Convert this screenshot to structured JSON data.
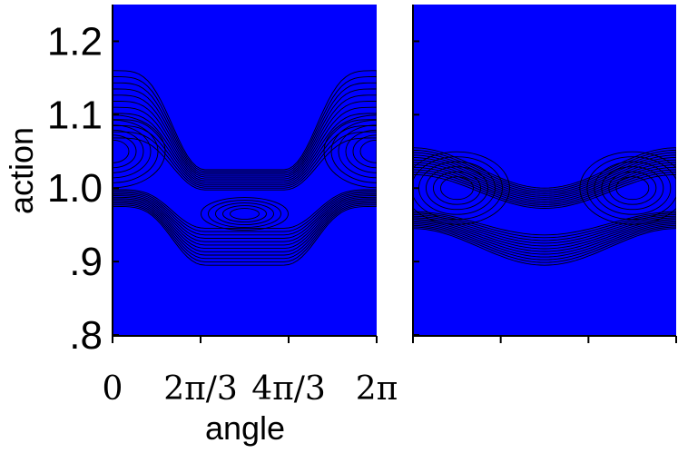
{
  "chart_data": [
    {
      "type": "contour",
      "xlabel": "angle",
      "ylabel": "action",
      "xlim": [
        0,
        6.2832
      ],
      "ylim": [
        0.8,
        1.25
      ],
      "x_ticks": [
        0,
        2.0944,
        4.1888,
        6.2832
      ],
      "x_tick_labels": [
        "0",
        "2π/3",
        "4π/3",
        "2π"
      ],
      "y_ticks": [
        0.8,
        0.9,
        1.0,
        1.1,
        1.2
      ],
      "y_tick_labels": [
        ".8",
        ".9",
        "1.0",
        "1.1",
        "1.2"
      ],
      "colormap": [
        "#0000ff",
        "#0a5cff",
        "#1ea0ff",
        "#35d2ff",
        "#3ff0d8",
        "#2fe890",
        "#40e830",
        "#9aef10",
        "#e8f000",
        "#ffd800",
        "#ff9a00",
        "#ff5a00",
        "#e81e00",
        "#ffffff"
      ],
      "max_region": {
        "center": [
          3.14159,
          0.965
        ],
        "description": "peak intensity at angle π, action ≈ 0.965"
      },
      "islands": [
        {
          "center_x": 0.0,
          "center_y": 1.05
        },
        {
          "center_x": 6.2832,
          "center_y": 1.05
        }
      ]
    },
    {
      "type": "contour",
      "xlim": [
        0,
        6.2832
      ],
      "ylim": [
        0.8,
        1.25
      ],
      "x_ticks": [
        0,
        2.0944,
        4.1888,
        6.2832
      ],
      "colormap": [
        "#0000ff",
        "#0a5cff",
        "#1ea0ff",
        "#35d2ff",
        "#3ff0d8",
        "#2fe890",
        "#40e830",
        "#9aef10",
        "#e8f000",
        "#ffd800",
        "#ff9a00",
        "#ff5a00",
        "#e81e00",
        "#ffffff"
      ],
      "islands": [
        {
          "center_x": 1.05,
          "center_y": 1.0
        },
        {
          "center_x": 5.24,
          "center_y": 1.0
        }
      ]
    }
  ]
}
